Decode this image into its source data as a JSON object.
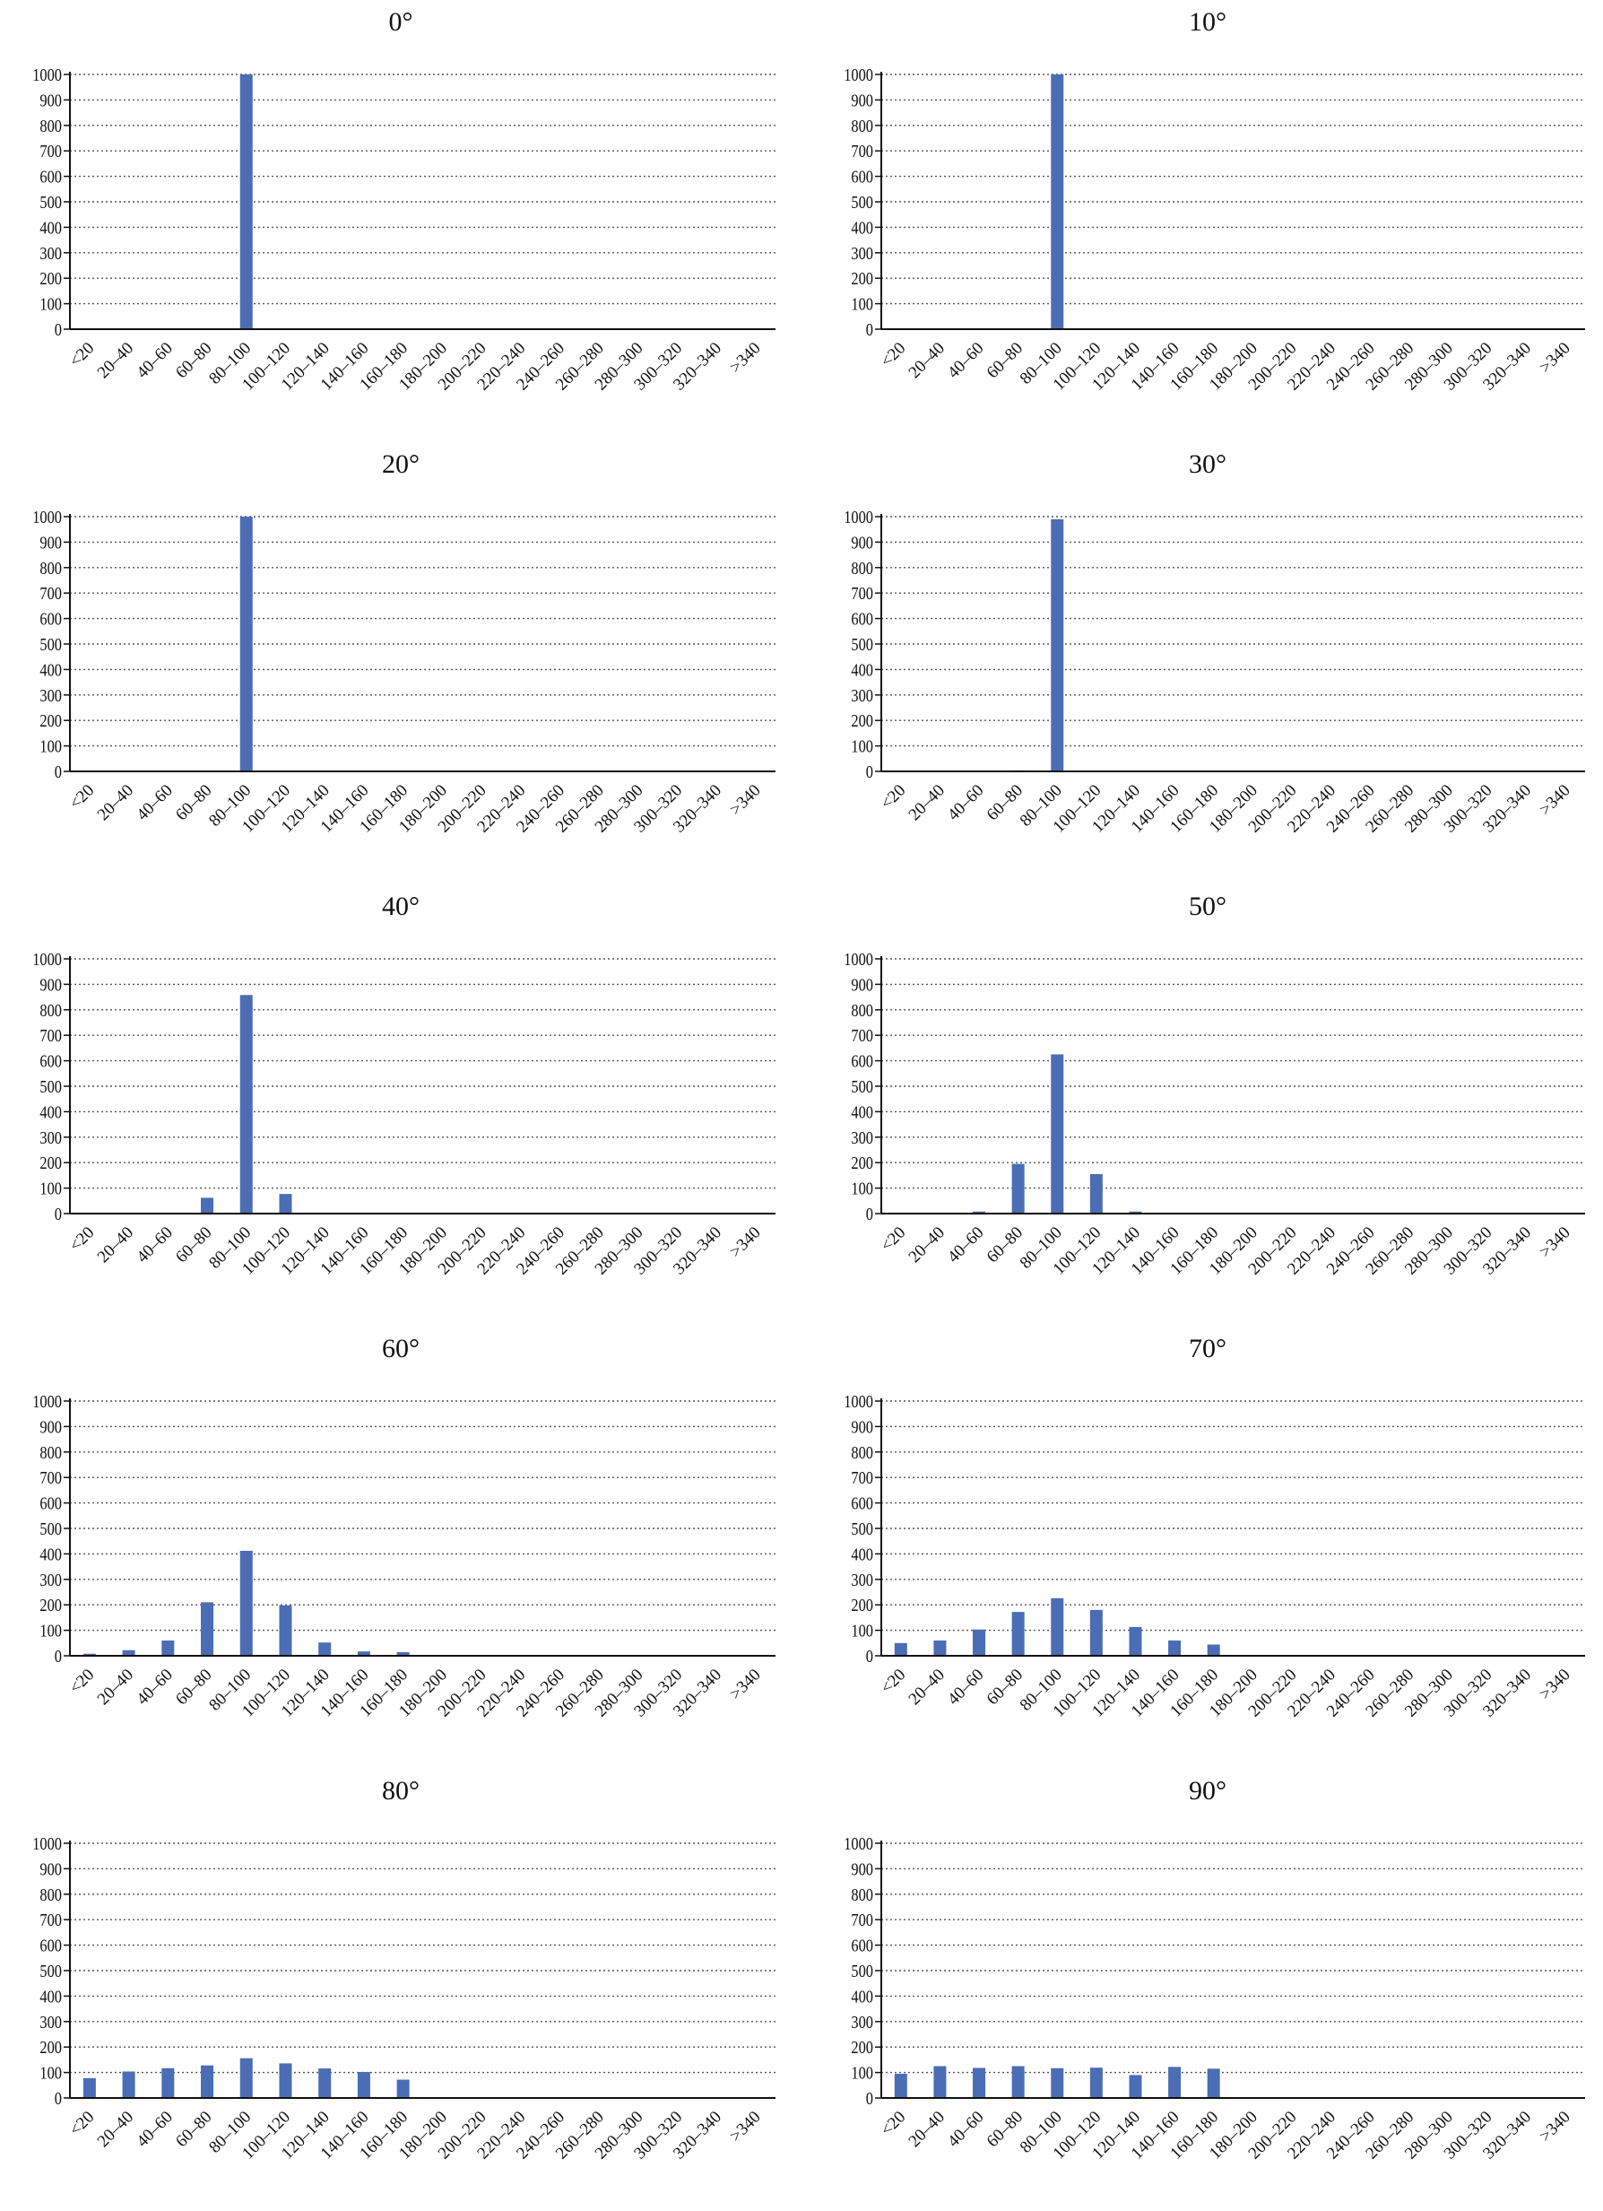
{
  "chart_data": {
    "type": "bar",
    "layout": "grid of 10 small-multiple bar charts, 5 rows x 2 columns",
    "categories": [
      "<20",
      "20–40",
      "40–60",
      "60–80",
      "80–100",
      "100–120",
      "120–140",
      "140–160",
      "160–180",
      "180–200",
      "200–220",
      "220–240",
      "240–260",
      "260–280",
      "280–300",
      "300–320",
      "320–340",
      ">340"
    ],
    "ylim": [
      0,
      1000
    ],
    "yticks": [
      0,
      100,
      200,
      300,
      400,
      500,
      600,
      700,
      800,
      900,
      1000
    ],
    "grid": "horizontal dotted",
    "bar_color": "#4a6db5",
    "charts": [
      {
        "title": "0°",
        "values": [
          0,
          0,
          0,
          0,
          1000,
          0,
          0,
          0,
          0,
          0,
          0,
          0,
          0,
          0,
          0,
          0,
          0,
          0
        ]
      },
      {
        "title": "10°",
        "values": [
          0,
          0,
          0,
          0,
          1000,
          0,
          0,
          0,
          0,
          0,
          0,
          0,
          0,
          0,
          0,
          0,
          0,
          0
        ]
      },
      {
        "title": "20°",
        "values": [
          0,
          0,
          0,
          0,
          1000,
          0,
          0,
          0,
          0,
          0,
          0,
          0,
          0,
          0,
          0,
          0,
          0,
          0
        ]
      },
      {
        "title": "30°",
        "values": [
          0,
          0,
          0,
          4,
          990,
          3,
          0,
          0,
          0,
          0,
          0,
          0,
          0,
          0,
          0,
          0,
          0,
          0
        ]
      },
      {
        "title": "40°",
        "values": [
          0,
          0,
          0,
          62,
          858,
          77,
          0,
          0,
          2,
          0,
          0,
          0,
          0,
          0,
          0,
          0,
          0,
          0
        ]
      },
      {
        "title": "50°",
        "values": [
          0,
          1,
          8,
          195,
          625,
          155,
          8,
          0,
          0,
          0,
          0,
          0,
          0,
          0,
          0,
          0,
          0,
          0
        ]
      },
      {
        "title": "60°",
        "values": [
          8,
          22,
          60,
          210,
          412,
          198,
          52,
          17,
          14,
          0,
          0,
          0,
          0,
          0,
          0,
          0,
          0,
          0
        ]
      },
      {
        "title": "70°",
        "values": [
          50,
          60,
          103,
          172,
          226,
          180,
          113,
          60,
          44,
          0,
          0,
          0,
          0,
          0,
          0,
          0,
          0,
          0
        ]
      },
      {
        "title": "80°",
        "values": [
          78,
          104,
          117,
          128,
          156,
          136,
          116,
          102,
          72,
          0,
          0,
          0,
          0,
          0,
          0,
          0,
          0,
          0
        ]
      },
      {
        "title": "90°",
        "values": [
          95,
          125,
          118,
          125,
          117,
          119,
          90,
          122,
          115,
          0,
          0,
          0,
          0,
          0,
          0,
          0,
          0,
          0
        ]
      }
    ]
  }
}
